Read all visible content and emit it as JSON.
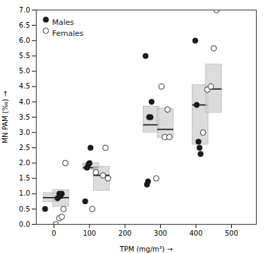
{
  "chart_data": {
    "type": "scatter",
    "title": "",
    "xlabel": "TPM (mg/m³)",
    "ylabel": "MN PAM (‰)",
    "xlim": [
      -50,
      570
    ],
    "ylim": [
      0,
      7.0
    ],
    "xticks": [
      0,
      100,
      200,
      300,
      400,
      500
    ],
    "yticks": [
      {
        "value": 0.0,
        "label": "0.0"
      },
      0.5,
      {
        "value": 1.0,
        "label": "1.0"
      },
      1.5,
      {
        "value": 2.0,
        "label": "2.0"
      },
      2.5,
      {
        "value": 3.0,
        "label": "3.0"
      },
      3.5,
      {
        "value": 4.0,
        "label": "4.0"
      },
      4.5,
      {
        "value": 5.0,
        "label": "5.0"
      },
      5.5,
      {
        "value": 6.0,
        "label": "6.0"
      },
      6.5,
      {
        "value": 7.0,
        "label": "7.0"
      }
    ],
    "grid": false,
    "legend": "upper left",
    "series": [
      {
        "name": "Males",
        "color": "#1a1a1a",
        "marker": "circle",
        "x": [
          -25,
          10,
          15,
          18,
          22,
          88,
          93,
          97,
          100,
          103,
          258,
          262,
          265,
          268,
          272,
          275,
          398,
          402,
          407,
          410,
          413
        ],
        "y": [
          0.5,
          0.85,
          1.0,
          0.92,
          1.0,
          0.75,
          1.85,
          1.95,
          2.0,
          2.5,
          5.5,
          1.3,
          1.4,
          3.5,
          3.5,
          4.0,
          6.0,
          3.9,
          2.7,
          2.5,
          2.3
        ],
        "boxes": [
          {
            "x": -30,
            "width": 45,
            "median": 0.87,
            "q1": 0.73,
            "q3": 1.02,
            "color": "#d0d0d0"
          },
          {
            "x": 82,
            "width": 45,
            "median": 1.85,
            "q1": 1.78,
            "q3": 2.0,
            "color": "#d0d0d0"
          },
          {
            "x": 252,
            "width": 45,
            "median": 3.25,
            "q1": 3.0,
            "q3": 3.85,
            "color": "#d0d0d0"
          },
          {
            "x": 390,
            "width": 45,
            "median": 3.9,
            "q1": 2.6,
            "q3": 4.55,
            "color": "#d0d0d0"
          }
        ]
      },
      {
        "name": "Females",
        "color": "#1a1a1a",
        "marker": "open_circle",
        "x": [
          5,
          15,
          22,
          27,
          32,
          108,
          118,
          138,
          145,
          152,
          288,
          303,
          312,
          320,
          325,
          420,
          432,
          442,
          450,
          458
        ],
        "y": [
          0.0,
          0.2,
          0.25,
          0.5,
          2.0,
          0.5,
          1.7,
          1.6,
          2.5,
          1.5,
          1.5,
          4.5,
          2.85,
          3.75,
          2.85,
          3.0,
          4.4,
          4.5,
          5.75,
          7.0
        ],
        "boxes": [
          {
            "x": -2,
            "width": 45,
            "median": 0.87,
            "q1": 0.58,
            "q3": 1.12,
            "color": "#d0d0d0"
          },
          {
            "x": 112,
            "width": 45,
            "median": 1.6,
            "q1": 1.1,
            "q3": 1.88,
            "color": "#d0d0d0"
          },
          {
            "x": 292,
            "width": 45,
            "median": 3.1,
            "q1": 2.82,
            "q3": 3.78,
            "color": "#d0d0d0"
          },
          {
            "x": 428,
            "width": 45,
            "median": 4.42,
            "q1": 3.65,
            "q3": 5.22,
            "color": "#d0d0d0"
          }
        ]
      }
    ]
  }
}
